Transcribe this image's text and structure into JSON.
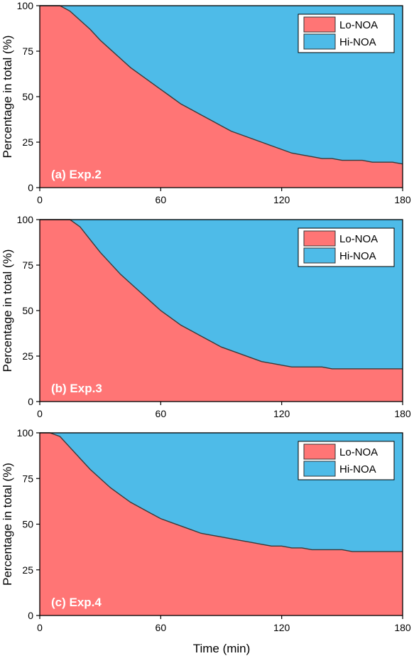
{
  "figure": {
    "xlabel": "Time (min)",
    "colors": {
      "lo": "#ff7575",
      "hi": "#4ebbe8",
      "boundary": "#3a3a3a"
    }
  },
  "chart_data": [
    {
      "type": "area",
      "label": "(a) Exp.2",
      "ylabel": "Percentage in total (%)",
      "xlim": [
        0,
        180
      ],
      "ylim": [
        0,
        100
      ],
      "xticks": [
        0,
        60,
        120,
        180
      ],
      "yticks": [
        0,
        25,
        50,
        75,
        100
      ],
      "legend_position": "top-right",
      "stacked": true,
      "series": [
        {
          "name": "Lo-NOA",
          "color": "#ff7575"
        },
        {
          "name": "Hi-NOA",
          "color": "#4ebbe8"
        }
      ],
      "x": [
        0,
        5,
        10,
        15,
        20,
        25,
        30,
        35,
        40,
        45,
        50,
        55,
        60,
        65,
        70,
        75,
        80,
        85,
        90,
        95,
        100,
        105,
        110,
        115,
        120,
        125,
        130,
        135,
        140,
        145,
        150,
        155,
        160,
        165,
        170,
        175,
        180
      ],
      "lo_noa": [
        100,
        100,
        100,
        97,
        92,
        87,
        81,
        76,
        71,
        66,
        62,
        58,
        54,
        50,
        46,
        43,
        40,
        37,
        34,
        31,
        29,
        27,
        25,
        23,
        21,
        19,
        18,
        17,
        16,
        16,
        15,
        15,
        15,
        14,
        14,
        14,
        13
      ]
    },
    {
      "type": "area",
      "label": "(b) Exp.3",
      "ylabel": "Percentage in total (%)",
      "xlim": [
        0,
        180
      ],
      "ylim": [
        0,
        100
      ],
      "xticks": [
        0,
        60,
        120,
        180
      ],
      "yticks": [
        0,
        25,
        50,
        75,
        100
      ],
      "legend_position": "top-right",
      "stacked": true,
      "series": [
        {
          "name": "Lo-NOA",
          "color": "#ff7575"
        },
        {
          "name": "Hi-NOA",
          "color": "#4ebbe8"
        }
      ],
      "x": [
        0,
        5,
        10,
        15,
        20,
        25,
        30,
        35,
        40,
        45,
        50,
        55,
        60,
        65,
        70,
        75,
        80,
        85,
        90,
        95,
        100,
        105,
        110,
        115,
        120,
        125,
        130,
        135,
        140,
        145,
        150,
        155,
        160,
        165,
        170,
        175,
        180
      ],
      "lo_noa": [
        100,
        100,
        100,
        100,
        96,
        89,
        82,
        76,
        70,
        65,
        60,
        55,
        50,
        46,
        42,
        39,
        36,
        33,
        30,
        28,
        26,
        24,
        22,
        21,
        20,
        19,
        19,
        19,
        19,
        18,
        18,
        18,
        18,
        18,
        18,
        18,
        18
      ]
    },
    {
      "type": "area",
      "label": "(c) Exp.4",
      "ylabel": "Percentage in total (%)",
      "xlim": [
        0,
        180
      ],
      "ylim": [
        0,
        100
      ],
      "xticks": [
        0,
        60,
        120,
        180
      ],
      "yticks": [
        0,
        25,
        50,
        75,
        100
      ],
      "legend_position": "top-right",
      "stacked": true,
      "series": [
        {
          "name": "Lo-NOA",
          "color": "#ff7575"
        },
        {
          "name": "Hi-NOA",
          "color": "#4ebbe8"
        }
      ],
      "x": [
        0,
        5,
        10,
        15,
        20,
        25,
        30,
        35,
        40,
        45,
        50,
        55,
        60,
        65,
        70,
        75,
        80,
        85,
        90,
        95,
        100,
        105,
        110,
        115,
        120,
        125,
        130,
        135,
        140,
        145,
        150,
        155,
        160,
        165,
        170,
        175,
        180
      ],
      "lo_noa": [
        100,
        100,
        98,
        92,
        86,
        80,
        75,
        70,
        66,
        62,
        59,
        56,
        53,
        51,
        49,
        47,
        45,
        44,
        43,
        42,
        41,
        40,
        39,
        38,
        38,
        37,
        37,
        36,
        36,
        36,
        36,
        35,
        35,
        35,
        35,
        35,
        35
      ]
    }
  ]
}
